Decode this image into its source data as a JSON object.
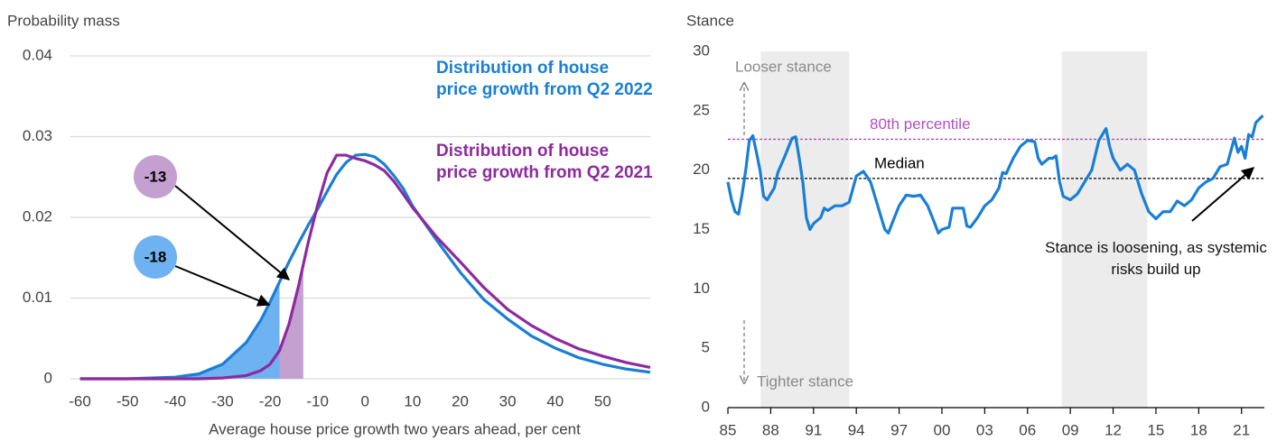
{
  "chart_data": [
    {
      "type": "line",
      "y_label": "Probability mass",
      "x_label": "Average house price growth two years ahead, per cent",
      "xlim": [
        -62,
        60
      ],
      "xticks": [
        -60,
        -50,
        -40,
        -30,
        -20,
        -10,
        0,
        10,
        20,
        30,
        40,
        50
      ],
      "ylim": [
        0,
        0.04
      ],
      "yticks": [
        0,
        0.01,
        0.02,
        0.03,
        0.04
      ],
      "grid": true,
      "x": [
        -60,
        -55,
        -50,
        -45,
        -40,
        -35,
        -30,
        -25,
        -22,
        -20,
        -18,
        -16,
        -14,
        -12,
        -10,
        -8,
        -6,
        -4,
        -2,
        0,
        2,
        4,
        6,
        8,
        10,
        15,
        20,
        25,
        30,
        35,
        40,
        45,
        50,
        55,
        60
      ],
      "series": [
        {
          "name": "Distribution of house price growth from Q2 2022",
          "color": "#1a7fd4",
          "shade": "#6fb2f2",
          "quantile": -18,
          "values": [
            0,
            0,
            0,
            0.0001,
            0.0002,
            0.0006,
            0.0018,
            0.0045,
            0.0072,
            0.0095,
            0.012,
            0.0145,
            0.0168,
            0.019,
            0.021,
            0.0232,
            0.0253,
            0.0268,
            0.0277,
            0.0278,
            0.0275,
            0.0266,
            0.0252,
            0.0236,
            0.0214,
            0.0172,
            0.0132,
            0.0098,
            0.0074,
            0.0053,
            0.0038,
            0.0026,
            0.0018,
            0.0012,
            0.0008
          ]
        },
        {
          "name": "Distribution of house price growth from Q2 2021",
          "color": "#8e2a9e",
          "shade": "#c3a0d0",
          "quantile": -13,
          "values": [
            0,
            0,
            0,
            0,
            0,
            0,
            0.0001,
            0.0004,
            0.001,
            0.0018,
            0.0035,
            0.0068,
            0.0115,
            0.0168,
            0.0215,
            0.0255,
            0.0277,
            0.0277,
            0.0273,
            0.027,
            0.0265,
            0.0258,
            0.0245,
            0.0229,
            0.0212,
            0.0176,
            0.0145,
            0.0113,
            0.0086,
            0.0066,
            0.005,
            0.0037,
            0.0028,
            0.002,
            0.0014
          ]
        }
      ]
    },
    {
      "type": "line",
      "y_label": "Stance",
      "xlim": [
        1985,
        2022.6
      ],
      "xticks": [
        {
          "value": 1985,
          "label": "85"
        },
        {
          "value": 1988,
          "label": "88"
        },
        {
          "value": 1991,
          "label": "91"
        },
        {
          "value": 1994,
          "label": "94"
        },
        {
          "value": 1997,
          "label": "97"
        },
        {
          "value": 2000,
          "label": "00"
        },
        {
          "value": 2003,
          "label": "03"
        },
        {
          "value": 2006,
          "label": "06"
        },
        {
          "value": 2009,
          "label": "09"
        },
        {
          "value": 2012,
          "label": "12"
        },
        {
          "value": 2015,
          "label": "15"
        },
        {
          "value": 2018,
          "label": "18"
        },
        {
          "value": 2021,
          "label": "21"
        }
      ],
      "ylim": [
        0,
        30
      ],
      "yticks": [
        0,
        5,
        10,
        15,
        20,
        25,
        30
      ],
      "grid": false,
      "x_axis_line": true,
      "shaded_periods": [
        [
          1987.3,
          1993.5
        ],
        [
          2008.4,
          2014.4
        ]
      ],
      "reference_lines": [
        {
          "label": "80th percentile",
          "value": 22.6,
          "color": "#b04fc0"
        },
        {
          "label": "Median",
          "value": 19.3,
          "color": "#000000"
        }
      ],
      "annotations": [
        "Looser stance",
        "Tighter stance",
        "Stance is loosening, as systemic risks build up"
      ],
      "x": [
        1985.0,
        1985.25,
        1985.5,
        1985.75,
        1986.0,
        1986.25,
        1986.5,
        1986.75,
        1987.0,
        1987.25,
        1987.5,
        1987.75,
        1988.0,
        1988.25,
        1988.5,
        1988.75,
        1989.0,
        1989.5,
        1989.75,
        1990.0,
        1990.25,
        1990.5,
        1990.75,
        1991.0,
        1991.5,
        1991.75,
        1992.0,
        1992.5,
        1993.0,
        1993.5,
        1994.0,
        1994.5,
        1995.0,
        1995.5,
        1996.0,
        1996.25,
        1996.5,
        1997.0,
        1997.5,
        1998.0,
        1998.5,
        1999.0,
        1999.5,
        1999.75,
        2000.0,
        2000.5,
        2000.75,
        2001.5,
        2001.75,
        2002.0,
        2002.5,
        2003.0,
        2003.5,
        2004.0,
        2004.25,
        2004.5,
        2005.0,
        2005.5,
        2006.0,
        2006.5,
        2006.75,
        2007.0,
        2007.5,
        2007.75,
        2008.0,
        2008.25,
        2008.5,
        2009.0,
        2009.5,
        2010.0,
        2010.5,
        2011.0,
        2011.5,
        2011.75,
        2012.0,
        2012.5,
        2013.0,
        2013.5,
        2014.0,
        2014.5,
        2015.0,
        2015.5,
        2016.0,
        2016.5,
        2017.0,
        2017.5,
        2018.0,
        2018.5,
        2019.0,
        2019.5,
        2020.0,
        2020.5,
        2020.75,
        2021.0,
        2021.25,
        2021.5,
        2021.75,
        2022.0,
        2022.5
      ],
      "series": [
        {
          "color": "#1a7fd4",
          "values": [
            19,
            17.5,
            16.5,
            16.3,
            18,
            20,
            22.5,
            22.9,
            21.5,
            20,
            17.8,
            17.5,
            18,
            18.5,
            19.8,
            20.5,
            21.2,
            22.7,
            22.8,
            21,
            19,
            16,
            15,
            15.5,
            16,
            16.8,
            16.6,
            17,
            17,
            17.3,
            19.5,
            19.9,
            19,
            17,
            15,
            14.7,
            15.5,
            17,
            17.9,
            17.8,
            17.9,
            17,
            15.5,
            14.7,
            15,
            15.2,
            16.8,
            16.8,
            15.3,
            15.2,
            16,
            17,
            17.5,
            18.5,
            19.8,
            19.7,
            21,
            22,
            22.5,
            22.4,
            21,
            20.5,
            21,
            21,
            21.2,
            19,
            17.8,
            17.5,
            18,
            19,
            20,
            22.5,
            23.5,
            22,
            21,
            20,
            20.5,
            20,
            18,
            16.5,
            15.9,
            16.5,
            16.5,
            17.4,
            17,
            17.5,
            18.5,
            19,
            19.3,
            20.3,
            20.5,
            22.7,
            21.5,
            22,
            21,
            23,
            22.8,
            24,
            24.6
          ]
        }
      ]
    }
  ]
}
